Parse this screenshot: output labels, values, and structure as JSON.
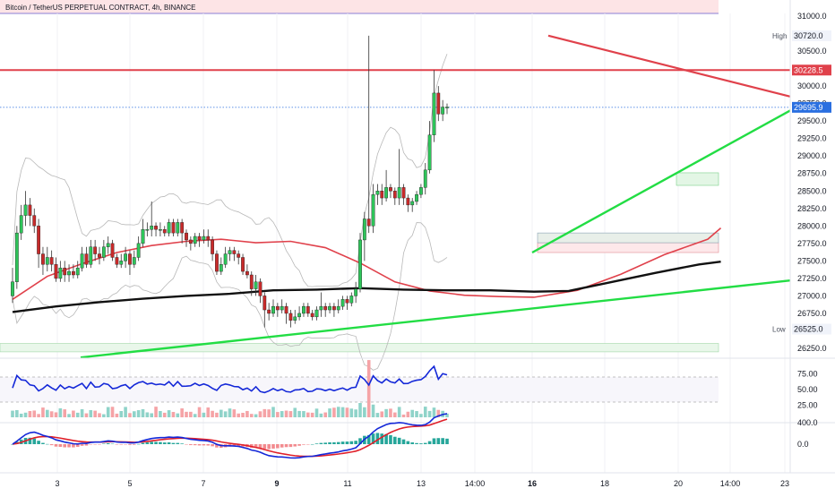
{
  "header": {
    "title": "Bitcoin / TetherUS PERPETUAL CONTRACT, 4h, BINANCE"
  },
  "colors": {
    "up": "#26a69a",
    "down": "#ef5350",
    "upFill": "#22c55e",
    "downFill": "#dc2626",
    "resistance": "#e0414b",
    "support": "#22dd44",
    "ema_short": "#e0414b",
    "ema_long": "#111111",
    "rsi": "#1428d8",
    "macd": "#1428d8",
    "signal": "#e0202a",
    "band": "#b8b8b8"
  },
  "chart_data": {
    "type": "candlestick",
    "price_axis": {
      "ticks": [
        "31000.0",
        "30750.0",
        "30500.0",
        "30250.0",
        "30000.0",
        "29750.0",
        "29500.0",
        "29250.0",
        "29000.0",
        "28750.0",
        "28500.0",
        "28250.0",
        "28000.0",
        "27750.0",
        "27500.0",
        "27250.0",
        "27000.0",
        "26750.0",
        "26500.0",
        "26250.0"
      ],
      "range": [
        26100,
        31150
      ]
    },
    "time_axis": {
      "ticks": [
        "3",
        "5",
        "7",
        "9",
        "11",
        "13",
        "14:00",
        "16",
        "18",
        "20",
        "14:00",
        "23"
      ],
      "bold": [
        "9",
        "16"
      ]
    },
    "price_labels": [
      {
        "label": "High",
        "value": "30720.0",
        "price": 30720
      },
      {
        "label": "",
        "value": "30228.5",
        "price": 30228.5
      },
      {
        "label": "",
        "value": "29695.9",
        "price": 29695.9
      },
      {
        "label": "Low",
        "value": "26525.0",
        "price": 26525
      }
    ],
    "horizontal_level": 30228.5,
    "last_price": 29695.9,
    "resistance_line": [
      [
        "16 04:00",
        30720
      ],
      [
        "21 20:00",
        29850
      ]
    ],
    "support_line_steep": [
      [
        "16 00:00",
        27620
      ],
      [
        "21 20:00",
        29650
      ]
    ],
    "support_line_long": [
      [
        "2 00:00",
        26120
      ],
      [
        "21 20:00",
        27220
      ]
    ],
    "zones": [
      {
        "from": 26200,
        "to": 26320
      },
      {
        "from": 27620,
        "to": 27760
      },
      {
        "from": 27760,
        "to": 27900
      },
      {
        "from": 28580,
        "to": 28760
      }
    ],
    "ema_short": [
      [
        0,
        26950
      ],
      [
        8,
        27280
      ],
      [
        16,
        27460
      ],
      [
        24,
        27620
      ],
      [
        32,
        27720
      ],
      [
        40,
        27780
      ],
      [
        48,
        27810
      ],
      [
        56,
        27760
      ],
      [
        64,
        27780
      ],
      [
        72,
        27690
      ],
      [
        80,
        27470
      ],
      [
        88,
        27200
      ],
      [
        96,
        27070
      ],
      [
        104,
        27010
      ],
      [
        112,
        26990
      ],
      [
        120,
        26980
      ],
      [
        130,
        27080
      ],
      [
        140,
        27310
      ],
      [
        150,
        27590
      ],
      [
        160,
        27810
      ],
      [
        163,
        27970
      ]
    ],
    "ema_long": [
      [
        0,
        26770
      ],
      [
        10,
        26850
      ],
      [
        20,
        26910
      ],
      [
        30,
        26960
      ],
      [
        40,
        27000
      ],
      [
        50,
        27030
      ],
      [
        60,
        27080
      ],
      [
        70,
        27090
      ],
      [
        80,
        27110
      ],
      [
        90,
        27090
      ],
      [
        100,
        27080
      ],
      [
        110,
        27080
      ],
      [
        120,
        27060
      ],
      [
        128,
        27070
      ],
      [
        138,
        27200
      ],
      [
        148,
        27330
      ],
      [
        158,
        27450
      ],
      [
        163,
        27490
      ]
    ],
    "candles": [
      [
        27.0,
        27.2,
        27.4,
        26.9
      ],
      [
        27.2,
        27.9,
        28.0,
        27.1
      ],
      [
        27.9,
        28.15,
        28.3,
        27.8
      ],
      [
        28.15,
        28.3,
        28.5,
        28.0
      ],
      [
        28.3,
        28.15,
        28.4,
        28.0
      ],
      [
        28.15,
        28.0,
        28.25,
        27.9
      ],
      [
        28.0,
        27.6,
        28.1,
        27.4
      ],
      [
        27.6,
        27.45,
        27.7,
        27.3
      ],
      [
        27.45,
        27.55,
        27.7,
        27.35
      ],
      [
        27.55,
        27.45,
        27.65,
        27.35
      ],
      [
        27.45,
        27.25,
        27.55,
        27.2
      ],
      [
        27.25,
        27.4,
        27.5,
        27.2
      ],
      [
        27.4,
        27.3,
        27.5,
        27.2
      ],
      [
        27.3,
        27.35,
        27.45,
        27.2
      ],
      [
        27.35,
        27.3,
        27.45,
        27.25
      ],
      [
        27.3,
        27.4,
        27.5,
        27.25
      ],
      [
        27.4,
        27.6,
        27.7,
        27.35
      ],
      [
        27.6,
        27.45,
        27.7,
        27.4
      ],
      [
        27.45,
        27.7,
        27.8,
        27.4
      ],
      [
        27.7,
        27.6,
        27.8,
        27.5
      ],
      [
        27.6,
        27.55,
        27.7,
        27.45
      ],
      [
        27.55,
        27.7,
        27.8,
        27.5
      ],
      [
        27.7,
        27.75,
        27.85,
        27.6
      ],
      [
        27.75,
        27.55,
        27.8,
        27.5
      ],
      [
        27.55,
        27.45,
        27.6,
        27.4
      ],
      [
        27.45,
        27.5,
        27.6,
        27.4
      ],
      [
        27.5,
        27.6,
        27.7,
        27.4
      ],
      [
        27.6,
        27.45,
        27.65,
        27.3
      ],
      [
        27.45,
        27.55,
        27.65,
        27.4
      ],
      [
        27.55,
        27.75,
        27.85,
        27.5
      ],
      [
        27.75,
        27.95,
        28.1,
        27.7
      ],
      [
        27.95,
        27.95,
        28.05,
        27.85
      ],
      [
        27.95,
        28.0,
        28.35,
        27.85
      ],
      [
        28.0,
        27.95,
        28.05,
        27.85
      ],
      [
        27.95,
        27.95,
        28.05,
        27.85
      ],
      [
        27.95,
        27.9,
        28.0,
        27.85
      ],
      [
        27.9,
        28.05,
        28.1,
        27.85
      ],
      [
        28.05,
        27.9,
        28.1,
        27.85
      ],
      [
        27.9,
        28.05,
        28.1,
        27.85
      ],
      [
        28.05,
        27.9,
        28.1,
        27.75
      ],
      [
        27.9,
        27.8,
        27.95,
        27.7
      ],
      [
        27.8,
        27.75,
        27.85,
        27.65
      ],
      [
        27.75,
        27.85,
        27.9,
        27.7
      ],
      [
        27.85,
        27.8,
        27.9,
        27.7
      ],
      [
        27.8,
        27.85,
        27.95,
        27.75
      ],
      [
        27.85,
        27.8,
        27.95,
        27.7
      ],
      [
        27.8,
        27.6,
        27.85,
        27.5
      ],
      [
        27.6,
        27.35,
        27.65,
        27.3
      ],
      [
        27.35,
        27.45,
        27.55,
        27.3
      ],
      [
        27.45,
        27.6,
        27.7,
        27.4
      ],
      [
        27.6,
        27.65,
        27.7,
        27.5
      ],
      [
        27.65,
        27.6,
        27.7,
        27.5
      ],
      [
        27.6,
        27.55,
        27.65,
        27.45
      ],
      [
        27.55,
        27.35,
        27.6,
        27.3
      ],
      [
        27.35,
        27.3,
        27.45,
        27.25
      ],
      [
        27.3,
        27.1,
        27.35,
        27.0
      ],
      [
        27.1,
        27.2,
        27.3,
        27.0
      ],
      [
        27.2,
        27.0,
        27.25,
        26.9
      ],
      [
        27.0,
        26.8,
        27.05,
        26.55
      ],
      [
        26.8,
        26.75,
        26.9,
        26.65
      ],
      [
        26.75,
        26.85,
        26.95,
        26.7
      ],
      [
        26.85,
        26.8,
        26.9,
        26.7
      ],
      [
        26.8,
        26.85,
        26.95,
        26.75
      ],
      [
        26.85,
        26.75,
        26.9,
        26.6
      ],
      [
        26.75,
        26.65,
        26.8,
        26.55
      ],
      [
        26.65,
        26.7,
        26.8,
        26.6
      ],
      [
        26.7,
        26.75,
        26.85,
        26.65
      ],
      [
        26.75,
        26.85,
        26.9,
        26.7
      ],
      [
        26.85,
        26.75,
        26.9,
        26.7
      ],
      [
        26.75,
        26.7,
        26.8,
        26.65
      ],
      [
        26.7,
        26.8,
        26.85,
        26.65
      ],
      [
        26.8,
        26.85,
        27.05,
        26.7
      ],
      [
        26.85,
        26.8,
        26.9,
        26.7
      ],
      [
        26.8,
        26.85,
        26.9,
        26.75
      ],
      [
        26.85,
        26.8,
        26.9,
        26.7
      ],
      [
        26.8,
        26.85,
        26.95,
        26.75
      ],
      [
        26.85,
        26.95,
        27.0,
        26.8
      ],
      [
        26.95,
        26.9,
        27.0,
        26.8
      ],
      [
        26.9,
        27.0,
        27.05,
        26.85
      ],
      [
        27.0,
        27.1,
        27.2,
        26.9
      ],
      [
        27.1,
        27.8,
        27.9,
        27.05
      ],
      [
        27.8,
        28.1,
        28.2,
        27.5
      ],
      [
        28.1,
        28.0,
        30.72,
        27.9
      ],
      [
        28.0,
        28.45,
        28.6,
        27.9
      ],
      [
        28.45,
        28.5,
        28.6,
        28.3
      ],
      [
        28.5,
        28.4,
        28.6,
        28.3
      ],
      [
        28.4,
        28.55,
        28.8,
        28.35
      ],
      [
        28.55,
        28.5,
        28.6,
        28.4
      ],
      [
        28.5,
        28.4,
        28.55,
        28.3
      ],
      [
        28.4,
        28.55,
        29.1,
        28.3
      ],
      [
        28.55,
        28.4,
        28.6,
        28.3
      ],
      [
        28.4,
        28.3,
        28.45,
        28.2
      ],
      [
        28.3,
        28.35,
        28.4,
        28.2
      ],
      [
        28.35,
        28.45,
        28.5,
        28.3
      ],
      [
        28.45,
        28.55,
        28.6,
        28.4
      ],
      [
        28.55,
        28.8,
        28.9,
        28.45
      ],
      [
        28.8,
        29.3,
        29.5,
        28.75
      ],
      [
        29.3,
        29.9,
        30.228,
        29.2
      ],
      [
        29.9,
        29.6,
        30.0,
        29.5
      ],
      [
        29.6,
        29.7,
        29.8,
        29.5
      ],
      [
        29.7,
        29.7,
        29.75,
        29.6
      ]
    ],
    "rsi": {
      "ticks": [
        "75.00",
        "50.00",
        "25.00"
      ],
      "levels": [
        70,
        30
      ]
    },
    "macd": {
      "ticks": [
        "400.0",
        "0.0"
      ]
    }
  }
}
